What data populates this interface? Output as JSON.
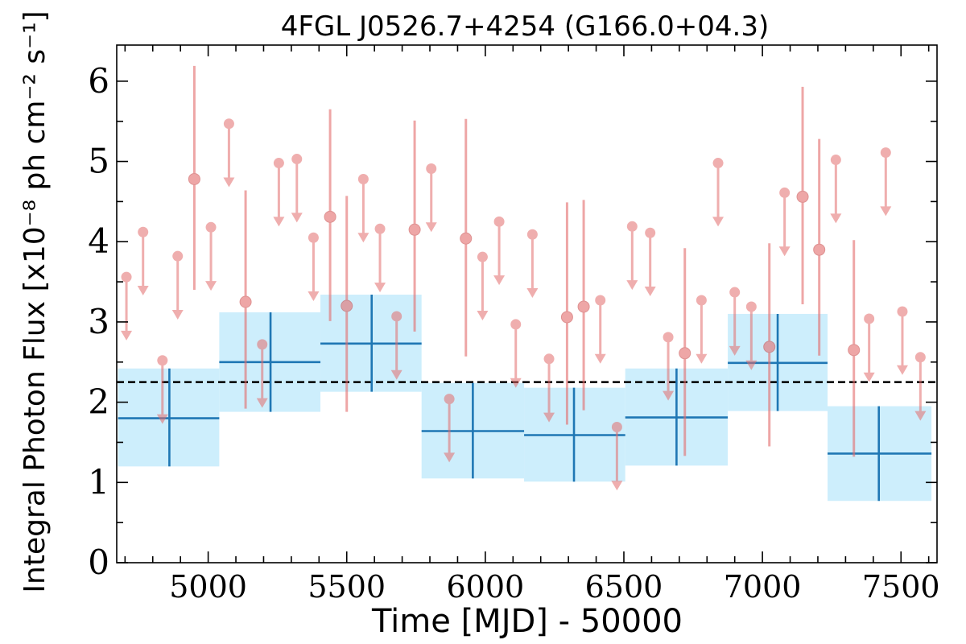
{
  "chart_data": {
    "type": "scatter",
    "title": "4FGL J0526.7+4254 (G166.0+04.3)",
    "xlabel": "Time [MJD] - 50000",
    "ylabel": "Integral Photon Flux [x10⁻⁸ ph cm⁻² s⁻¹]",
    "xlim": [
      4670,
      7630
    ],
    "ylim": [
      0,
      6.45
    ],
    "xticks": [
      5000,
      5500,
      6000,
      6500,
      7000,
      7500
    ],
    "yticks": [
      0,
      1,
      2,
      3,
      4,
      5,
      6
    ],
    "grid": false,
    "mean_flux": 2.25,
    "colors": {
      "long_bins": "#1f77b4",
      "long_bins_band": "#cdeefc",
      "short_bins": "#e36c6c",
      "mean_line": "#000000"
    },
    "long_bins": [
      {
        "x": 4860,
        "x_lo": 4675,
        "x_hi": 5040,
        "y": 1.8,
        "y_lo": 1.2,
        "y_hi": 2.42
      },
      {
        "x": 5225,
        "x_lo": 5040,
        "x_hi": 5405,
        "y": 2.5,
        "y_lo": 1.88,
        "y_hi": 3.12
      },
      {
        "x": 5590,
        "x_lo": 5405,
        "x_hi": 5770,
        "y": 2.73,
        "y_lo": 2.13,
        "y_hi": 3.34
      },
      {
        "x": 5955,
        "x_lo": 5770,
        "x_hi": 6140,
        "y": 1.64,
        "y_lo": 1.05,
        "y_hi": 2.24
      },
      {
        "x": 6320,
        "x_lo": 6140,
        "x_hi": 6505,
        "y": 1.59,
        "y_lo": 1.01,
        "y_hi": 2.18
      },
      {
        "x": 6690,
        "x_lo": 6505,
        "x_hi": 6875,
        "y": 1.81,
        "y_lo": 1.21,
        "y_hi": 2.42
      },
      {
        "x": 7055,
        "x_lo": 6875,
        "x_hi": 7235,
        "y": 2.49,
        "y_lo": 1.89,
        "y_hi": 3.1
      },
      {
        "x": 7420,
        "x_lo": 7235,
        "x_hi": 7610,
        "y": 1.36,
        "y_lo": 0.77,
        "y_hi": 1.95
      }
    ],
    "upper_limits": [
      {
        "x": 4705,
        "y": 3.56
      },
      {
        "x": 4765,
        "y": 4.12
      },
      {
        "x": 4835,
        "y": 2.52
      },
      {
        "x": 4890,
        "y": 3.82
      },
      {
        "x": 5010,
        "y": 4.18
      },
      {
        "x": 5075,
        "y": 5.47
      },
      {
        "x": 5195,
        "y": 2.72
      },
      {
        "x": 5255,
        "y": 4.98
      },
      {
        "x": 5320,
        "y": 5.03
      },
      {
        "x": 5380,
        "y": 4.05
      },
      {
        "x": 5560,
        "y": 4.78
      },
      {
        "x": 5620,
        "y": 4.16
      },
      {
        "x": 5680,
        "y": 3.07
      },
      {
        "x": 5805,
        "y": 4.91
      },
      {
        "x": 5870,
        "y": 2.04
      },
      {
        "x": 5990,
        "y": 3.81
      },
      {
        "x": 6050,
        "y": 4.25
      },
      {
        "x": 6110,
        "y": 2.97
      },
      {
        "x": 6170,
        "y": 4.09
      },
      {
        "x": 6230,
        "y": 2.54
      },
      {
        "x": 6415,
        "y": 3.27
      },
      {
        "x": 6475,
        "y": 1.69
      },
      {
        "x": 6530,
        "y": 4.19
      },
      {
        "x": 6595,
        "y": 4.11
      },
      {
        "x": 6660,
        "y": 2.81
      },
      {
        "x": 6780,
        "y": 3.27
      },
      {
        "x": 6840,
        "y": 4.98
      },
      {
        "x": 6900,
        "y": 3.37
      },
      {
        "x": 6960,
        "y": 3.19
      },
      {
        "x": 7080,
        "y": 4.61
      },
      {
        "x": 7265,
        "y": 5.02
      },
      {
        "x": 7385,
        "y": 3.04
      },
      {
        "x": 7445,
        "y": 5.11
      },
      {
        "x": 7505,
        "y": 3.13
      },
      {
        "x": 7570,
        "y": 2.56
      }
    ],
    "detections": [
      {
        "x": 4950,
        "y": 4.78,
        "y_lo": 3.4,
        "y_hi": 6.19
      },
      {
        "x": 5135,
        "y": 3.25,
        "y_lo": 1.92,
        "y_hi": 4.64
      },
      {
        "x": 5440,
        "y": 4.31,
        "y_lo": 3.01,
        "y_hi": 5.65
      },
      {
        "x": 5500,
        "y": 3.2,
        "y_lo": 1.88,
        "y_hi": 4.57
      },
      {
        "x": 5745,
        "y": 4.15,
        "y_lo": 2.88,
        "y_hi": 5.51
      },
      {
        "x": 5930,
        "y": 4.04,
        "y_lo": 2.57,
        "y_hi": 5.53
      },
      {
        "x": 6295,
        "y": 3.06,
        "y_lo": 1.72,
        "y_hi": 4.49
      },
      {
        "x": 6355,
        "y": 3.19,
        "y_lo": 1.9,
        "y_hi": 4.52
      },
      {
        "x": 6720,
        "y": 2.61,
        "y_lo": 1.33,
        "y_hi": 3.92
      },
      {
        "x": 7025,
        "y": 2.69,
        "y_lo": 1.45,
        "y_hi": 3.98
      },
      {
        "x": 7145,
        "y": 4.56,
        "y_lo": 3.22,
        "y_hi": 5.93
      },
      {
        "x": 7205,
        "y": 3.9,
        "y_lo": 2.58,
        "y_hi": 5.28
      },
      {
        "x": 7330,
        "y": 2.65,
        "y_lo": 1.32,
        "y_hi": 4.02
      }
    ]
  }
}
